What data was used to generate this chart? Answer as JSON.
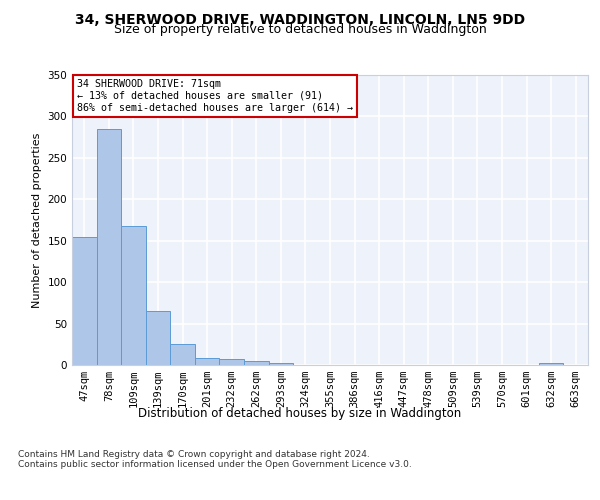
{
  "title": "34, SHERWOOD DRIVE, WADDINGTON, LINCOLN, LN5 9DD",
  "subtitle": "Size of property relative to detached houses in Waddington",
  "xlabel": "Distribution of detached houses by size in Waddington",
  "ylabel": "Number of detached properties",
  "categories": [
    "47sqm",
    "78sqm",
    "109sqm",
    "139sqm",
    "170sqm",
    "201sqm",
    "232sqm",
    "262sqm",
    "293sqm",
    "324sqm",
    "355sqm",
    "386sqm",
    "416sqm",
    "447sqm",
    "478sqm",
    "509sqm",
    "539sqm",
    "570sqm",
    "601sqm",
    "632sqm",
    "663sqm"
  ],
  "values": [
    155,
    285,
    168,
    65,
    25,
    9,
    7,
    5,
    3,
    0,
    0,
    0,
    0,
    0,
    0,
    0,
    0,
    0,
    0,
    3,
    0
  ],
  "bar_color": "#aec6e8",
  "bar_edge_color": "#5b9bd5",
  "annotation_line1": "34 SHERWOOD DRIVE: 71sqm",
  "annotation_line2": "← 13% of detached houses are smaller (91)",
  "annotation_line3": "86% of semi-detached houses are larger (614) →",
  "annotation_box_color": "#ffffff",
  "annotation_box_edge_color": "#cc0000",
  "ylim": [
    0,
    350
  ],
  "yticks": [
    0,
    50,
    100,
    150,
    200,
    250,
    300,
    350
  ],
  "bg_color": "#eef2fa",
  "grid_color": "#ffffff",
  "footer_text": "Contains HM Land Registry data © Crown copyright and database right 2024.\nContains public sector information licensed under the Open Government Licence v3.0.",
  "title_fontsize": 10,
  "subtitle_fontsize": 9,
  "xlabel_fontsize": 8.5,
  "ylabel_fontsize": 8,
  "tick_fontsize": 7.5,
  "footer_fontsize": 6.5
}
